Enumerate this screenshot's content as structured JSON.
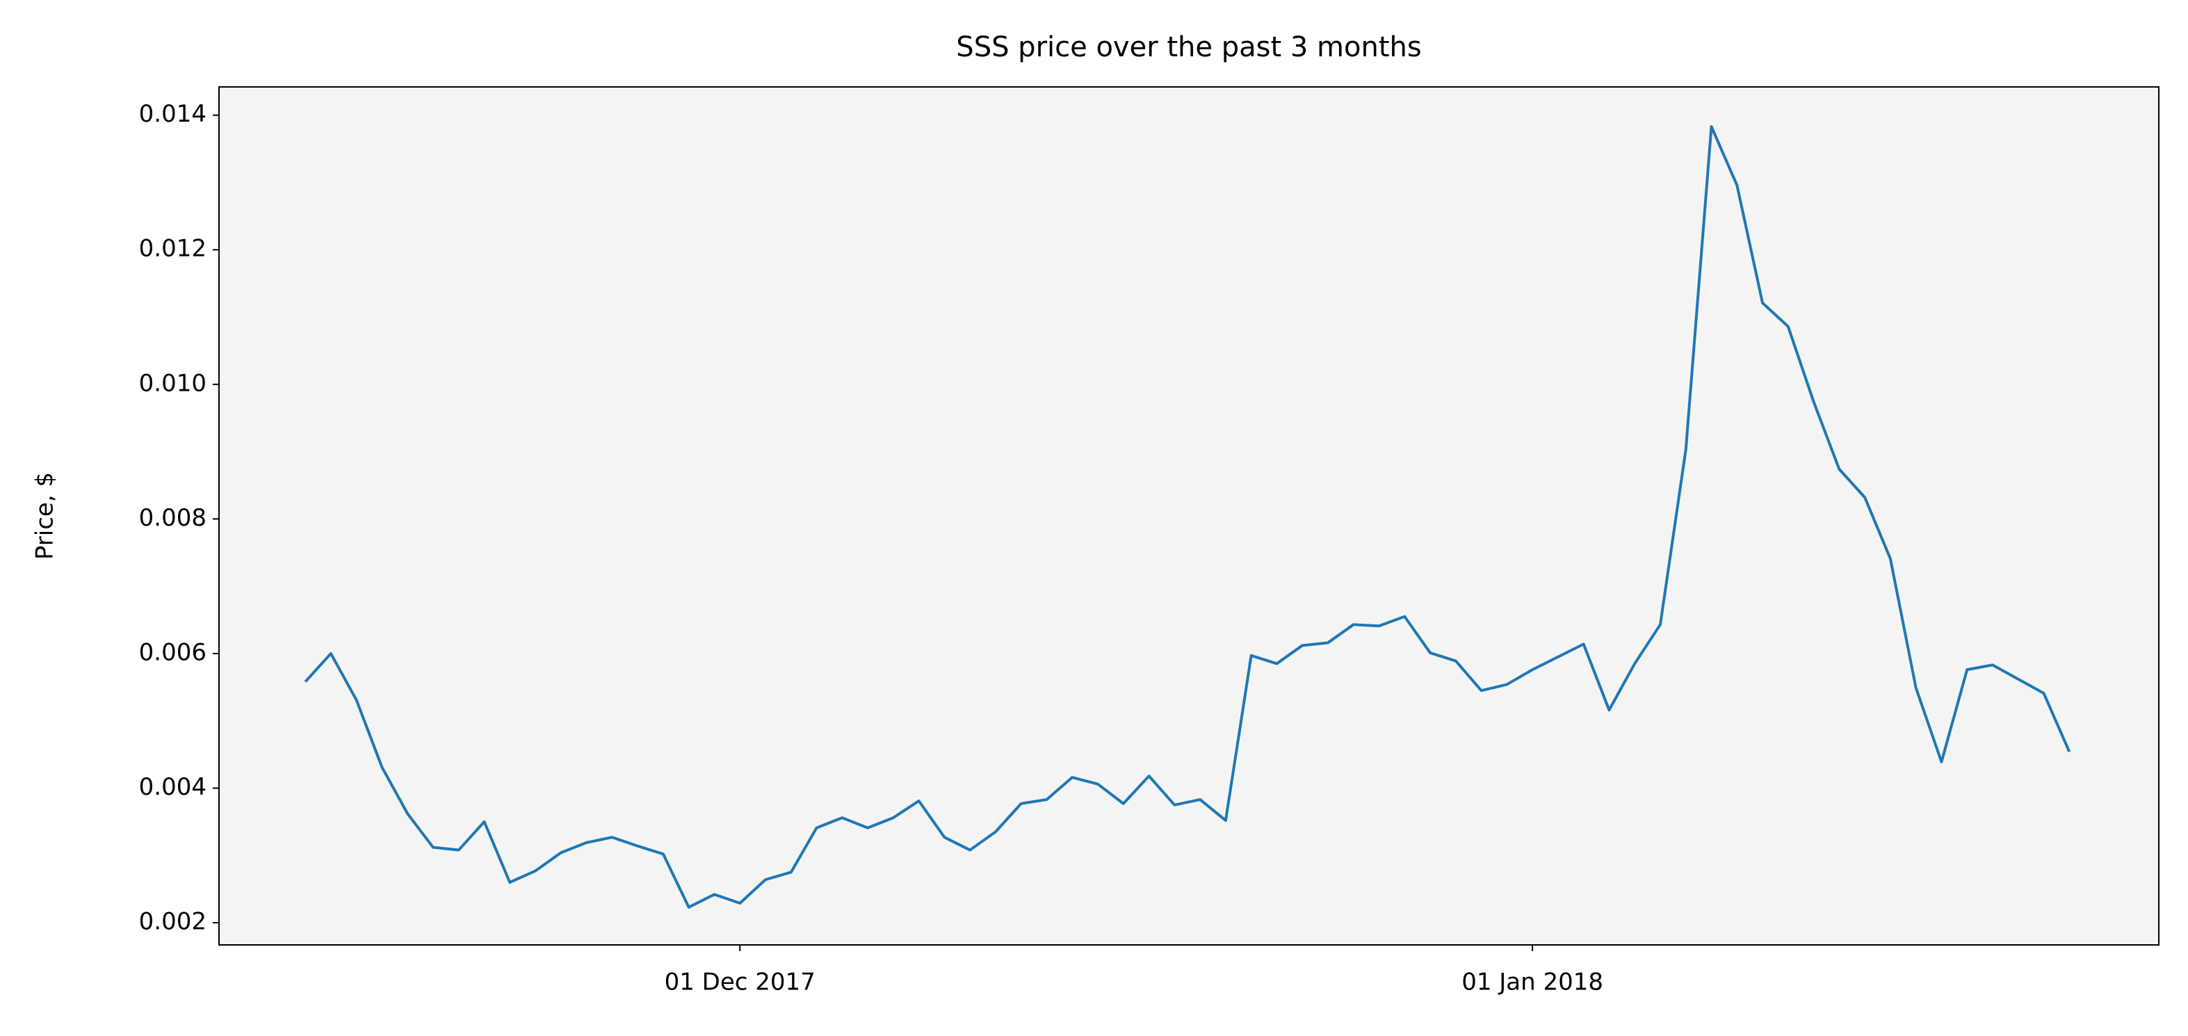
{
  "chart_data": {
    "type": "line",
    "title": "SSS price over the past 3 months",
    "y_label": "Price, $",
    "x": [
      "2017-11-14",
      "2017-11-15",
      "2017-11-16",
      "2017-11-17",
      "2017-11-18",
      "2017-11-19",
      "2017-11-20",
      "2017-11-21",
      "2017-11-22",
      "2017-11-23",
      "2017-11-24",
      "2017-11-25",
      "2017-11-26",
      "2017-11-27",
      "2017-11-28",
      "2017-11-29",
      "2017-11-30",
      "2017-12-01",
      "2017-12-02",
      "2017-12-03",
      "2017-12-04",
      "2017-12-05",
      "2017-12-06",
      "2017-12-07",
      "2017-12-08",
      "2017-12-09",
      "2017-12-10",
      "2017-12-11",
      "2017-12-12",
      "2017-12-13",
      "2017-12-14",
      "2017-12-15",
      "2017-12-16",
      "2017-12-17",
      "2017-12-18",
      "2017-12-19",
      "2017-12-20",
      "2017-12-21",
      "2017-12-22",
      "2017-12-23",
      "2017-12-24",
      "2017-12-25",
      "2017-12-26",
      "2017-12-27",
      "2017-12-28",
      "2017-12-29",
      "2017-12-30",
      "2017-12-31",
      "2018-01-01",
      "2018-01-02",
      "2018-01-03",
      "2018-01-04",
      "2018-01-05",
      "2018-01-06",
      "2018-01-07",
      "2018-01-08",
      "2018-01-09",
      "2018-01-10",
      "2018-01-11",
      "2018-01-12",
      "2018-01-13",
      "2018-01-14",
      "2018-01-15",
      "2018-01-16",
      "2018-01-17",
      "2018-01-18",
      "2018-01-19",
      "2018-01-20",
      "2018-01-21",
      "2018-01-22"
    ],
    "values": [
      0.00558,
      0.006,
      0.00531,
      0.00431,
      0.00362,
      0.00312,
      0.00308,
      0.0035,
      0.0026,
      0.00277,
      0.00304,
      0.00319,
      0.00327,
      0.00314,
      0.00302,
      0.00223,
      0.00242,
      0.00229,
      0.00264,
      0.00275,
      0.00341,
      0.00356,
      0.00341,
      0.00356,
      0.00381,
      0.00327,
      0.00308,
      0.00335,
      0.00377,
      0.00383,
      0.00416,
      0.00406,
      0.00377,
      0.00418,
      0.00375,
      0.00383,
      0.00352,
      0.00597,
      0.00585,
      0.00612,
      0.00616,
      0.00643,
      0.00641,
      0.00655,
      0.00601,
      0.00589,
      0.00545,
      0.00554,
      0.00576,
      0.00595,
      0.00614,
      0.00516,
      0.00585,
      0.00643,
      0.00903,
      0.01383,
      0.01296,
      0.01121,
      0.01086,
      0.00974,
      0.00874,
      0.00832,
      0.00741,
      0.00549,
      0.00439,
      0.00576,
      0.00583,
      0.00562,
      0.00541,
      0.00454
    ],
    "color": "#1f77b4",
    "background": "#f4f4f4",
    "xlim": [
      "2017-11-10T15:00Z",
      "2018-01-25T12:00Z"
    ],
    "xticks": [
      {
        "value": "2017-12-01",
        "label": "01 Dec 2017"
      },
      {
        "value": "2018-01-01",
        "label": "01 Jan 2018"
      }
    ],
    "ylim": [
      0.00167,
      0.01442
    ],
    "yticks": [
      0.002,
      0.004,
      0.006,
      0.008,
      {
        "value": 0.01,
        "label": "0.010"
      },
      0.012,
      0.014
    ],
    "grid": false
  }
}
